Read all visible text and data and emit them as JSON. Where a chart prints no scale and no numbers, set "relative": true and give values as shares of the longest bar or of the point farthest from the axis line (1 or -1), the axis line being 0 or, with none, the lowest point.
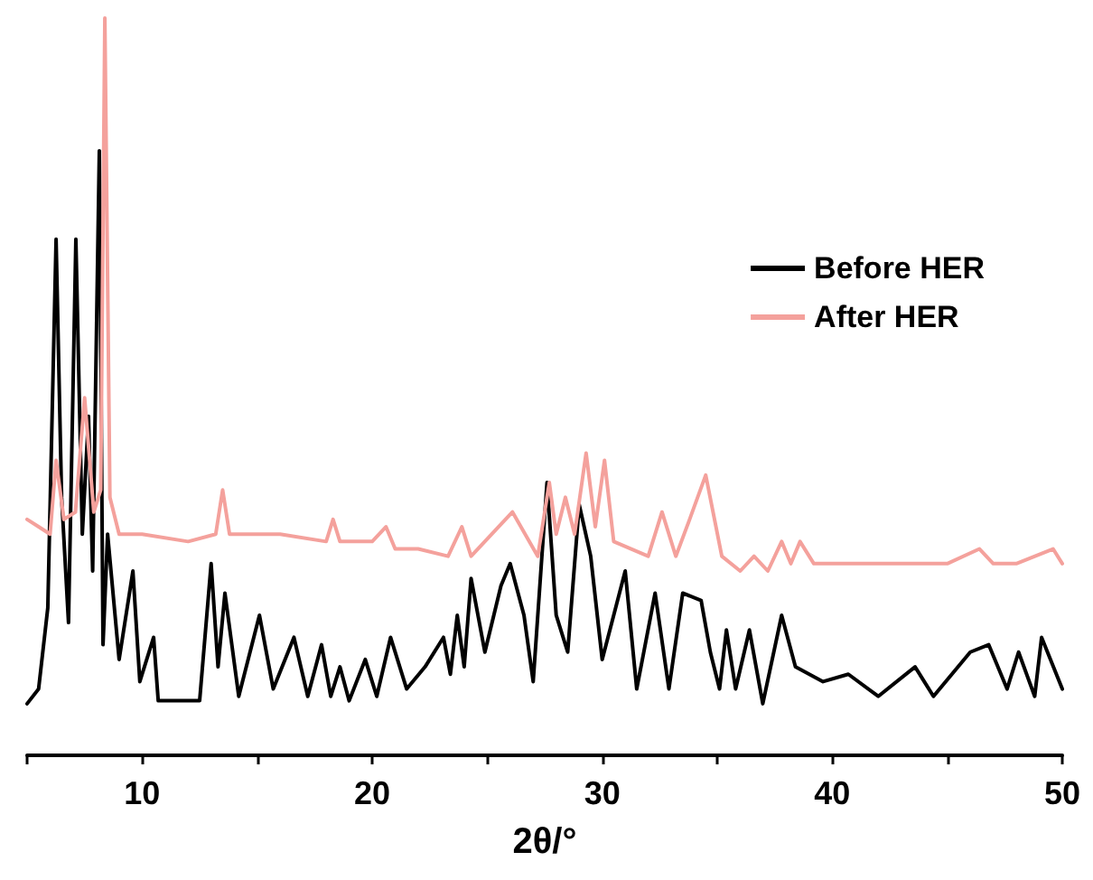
{
  "chart_data": {
    "type": "line",
    "relative": true,
    "xlabel": "2θ/°",
    "xlim": [
      5,
      50
    ],
    "xticks": [
      {
        "value": 5,
        "label": null
      },
      10,
      {
        "value": 15,
        "label": null
      },
      20,
      {
        "value": 25,
        "label": null
      },
      30,
      {
        "value": 35,
        "label": null
      },
      40,
      {
        "value": 45,
        "label": null
      },
      50
    ],
    "grid": false,
    "legend": "top right",
    "marker": "none",
    "line_style": "solid",
    "series": [
      {
        "name": "Before HER",
        "color": "#000000",
        "x": [
          5.0,
          5.5,
          5.9,
          6.26,
          6.5,
          6.8,
          7.12,
          7.4,
          7.67,
          7.85,
          8.14,
          8.3,
          8.5,
          9.0,
          9.6,
          9.9,
          10.5,
          10.7,
          12.5,
          13.0,
          13.3,
          13.6,
          14.2,
          15.1,
          15.7,
          16.6,
          17.2,
          17.8,
          18.2,
          18.6,
          19.0,
          19.7,
          20.2,
          20.8,
          21.5,
          22.3,
          23.1,
          23.4,
          23.7,
          24.0,
          24.3,
          24.9,
          25.6,
          26.0,
          26.6,
          27.0,
          27.6,
          28.0,
          28.5,
          29.0,
          29.5,
          30.0,
          31.0,
          31.5,
          32.3,
          32.9,
          33.5,
          34.3,
          34.7,
          35.1,
          35.4,
          35.8,
          36.4,
          36.98,
          37.8,
          38.4,
          39.6,
          40.7,
          42.0,
          43.6,
          44.4,
          46.0,
          46.8,
          47.6,
          48.1,
          48.8,
          49.1,
          50.0
        ],
        "values": [
          0.07,
          0.09,
          0.2,
          0.7,
          0.35,
          0.18,
          0.7,
          0.3,
          0.46,
          0.25,
          0.82,
          0.15,
          0.3,
          0.13,
          0.25,
          0.1,
          0.16,
          0.074,
          0.074,
          0.26,
          0.12,
          0.22,
          0.08,
          0.19,
          0.09,
          0.16,
          0.08,
          0.15,
          0.08,
          0.12,
          0.074,
          0.13,
          0.08,
          0.16,
          0.09,
          0.12,
          0.16,
          0.11,
          0.19,
          0.12,
          0.24,
          0.14,
          0.23,
          0.26,
          0.19,
          0.1,
          0.37,
          0.19,
          0.14,
          0.34,
          0.27,
          0.13,
          0.25,
          0.09,
          0.22,
          0.09,
          0.22,
          0.21,
          0.14,
          0.09,
          0.17,
          0.09,
          0.17,
          0.07,
          0.19,
          0.12,
          0.1,
          0.11,
          0.08,
          0.12,
          0.08,
          0.14,
          0.15,
          0.09,
          0.14,
          0.08,
          0.16,
          0.09
        ]
      },
      {
        "name": "After HER",
        "color": "#f4a19c",
        "x": [
          5.0,
          5.5,
          6.0,
          6.26,
          6.6,
          7.1,
          7.5,
          7.9,
          8.2,
          8.38,
          8.6,
          9.0,
          10.0,
          12.0,
          13.2,
          13.5,
          13.8,
          15.0,
          16.0,
          18.0,
          18.3,
          18.6,
          20.0,
          20.6,
          21.0,
          22.0,
          23.3,
          23.9,
          24.3,
          26.1,
          27.2,
          27.7,
          28.0,
          28.4,
          28.8,
          29.3,
          29.7,
          30.1,
          30.5,
          32.0,
          32.6,
          33.2,
          33.8,
          34.5,
          35.2,
          36.0,
          36.6,
          37.2,
          37.8,
          38.2,
          38.6,
          39.2,
          41.0,
          43.0,
          45.0,
          46.4,
          47.0,
          48.0,
          49.6,
          50.0
        ],
        "values": [
          0.32,
          0.31,
          0.3,
          0.4,
          0.32,
          0.33,
          0.485,
          0.33,
          0.36,
          1.0,
          0.35,
          0.3,
          0.3,
          0.29,
          0.3,
          0.36,
          0.3,
          0.3,
          0.3,
          0.29,
          0.32,
          0.29,
          0.29,
          0.31,
          0.28,
          0.28,
          0.27,
          0.31,
          0.27,
          0.33,
          0.27,
          0.37,
          0.3,
          0.35,
          0.3,
          0.41,
          0.31,
          0.4,
          0.29,
          0.27,
          0.33,
          0.27,
          0.32,
          0.38,
          0.27,
          0.25,
          0.27,
          0.25,
          0.29,
          0.26,
          0.29,
          0.26,
          0.26,
          0.26,
          0.26,
          0.28,
          0.26,
          0.26,
          0.28,
          0.26
        ]
      }
    ]
  }
}
